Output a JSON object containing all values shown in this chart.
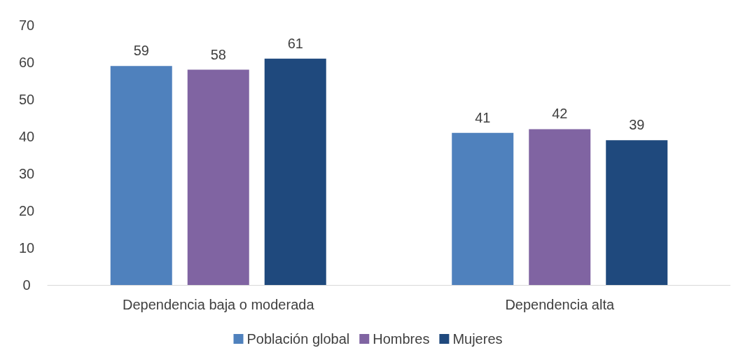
{
  "chart_data": {
    "type": "bar",
    "categories": [
      "Dependencia baja o moderada",
      "Dependencia alta"
    ],
    "series": [
      {
        "name": "Población global",
        "color": "#4f81bd",
        "values": [
          59,
          41
        ]
      },
      {
        "name": "Hombres",
        "color": "#8064a2",
        "values": [
          58,
          42
        ]
      },
      {
        "name": "Mujeres",
        "color": "#1f497d",
        "values": [
          61,
          39
        ]
      }
    ],
    "ylim": [
      0,
      70
    ],
    "yticks": [
      0,
      10,
      20,
      30,
      40,
      50,
      60,
      70
    ],
    "data_labels": true,
    "legend": "bottom"
  }
}
